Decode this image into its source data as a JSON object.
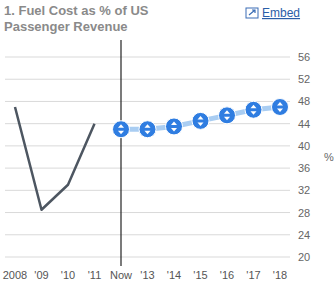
{
  "chart_data": {
    "type": "line",
    "title": "1. Fuel Cost as % of US Passenger Revenue",
    "y_label": "%",
    "annotations": [
      "Embed"
    ],
    "categories": [
      "2008",
      "'09",
      "'10",
      "'11",
      "Now",
      "'13",
      "'14",
      "'15",
      "'16",
      "'17",
      "'18"
    ],
    "series": [
      {
        "color": "#4d5661",
        "values": [
          47,
          28.5,
          33,
          44,
          null,
          null,
          null,
          null,
          null,
          null,
          null
        ]
      },
      {
        "color": "#2f7de1",
        "marker": "circle",
        "values": [
          null,
          null,
          null,
          null,
          43,
          43,
          43.5,
          44.5,
          45.5,
          46.5,
          47
        ]
      }
    ],
    "ylim": [
      20,
      56
    ],
    "yticks": [
      20,
      24,
      28,
      32,
      36,
      40,
      44,
      48,
      52,
      56
    ],
    "grid": true
  }
}
